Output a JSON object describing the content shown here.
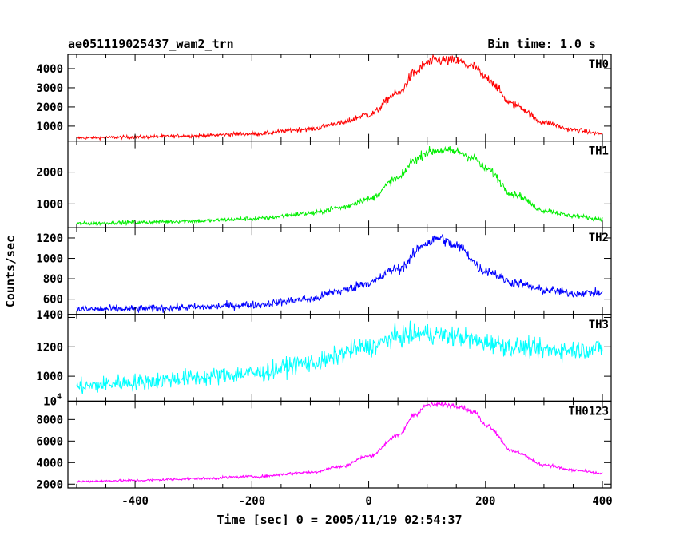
{
  "chart_data": {
    "type": "line",
    "title": "ae051119025437_wam2_trn",
    "bin_time": "Bin time: 1.0 s",
    "xlabel": "Time [sec] 0 = 2005/11/19 02:54:37",
    "ylabel": "Counts/sec",
    "xlim": [
      -515,
      415
    ],
    "xticks": [
      -400,
      -200,
      0,
      200,
      400
    ],
    "grid": false,
    "panels": [
      {
        "name": "TH0",
        "color": "#ff0000",
        "ylim": [
          220,
          4750
        ],
        "yticks": [
          1000,
          2000,
          3000,
          4000
        ],
        "noise": 80,
        "x": [
          -500,
          -400,
          -300,
          -200,
          -100,
          -50,
          0,
          50,
          80,
          100,
          120,
          150,
          180,
          200,
          250,
          300,
          350,
          400
        ],
        "y": [
          380,
          430,
          500,
          600,
          850,
          1150,
          1600,
          2700,
          3800,
          4300,
          4450,
          4400,
          4100,
          3500,
          2100,
          1200,
          800,
          600
        ]
      },
      {
        "name": "TH1",
        "color": "#00ee00",
        "ylim": [
          250,
          2980
        ],
        "yticks": [
          1000,
          2000
        ],
        "noise": 55,
        "x": [
          -500,
          -400,
          -300,
          -200,
          -100,
          -50,
          0,
          50,
          80,
          100,
          120,
          150,
          180,
          200,
          250,
          300,
          350,
          400
        ],
        "y": [
          380,
          420,
          460,
          530,
          700,
          880,
          1150,
          1800,
          2400,
          2630,
          2690,
          2650,
          2450,
          2100,
          1300,
          800,
          620,
          520
        ]
      },
      {
        "name": "TH2",
        "color": "#0000ff",
        "ylim": [
          450,
          1300
        ],
        "yticks": [
          600,
          800,
          1000,
          1200
        ],
        "noise": 35,
        "x": [
          -500,
          -400,
          -300,
          -200,
          -100,
          -50,
          0,
          50,
          100,
          120,
          150,
          200,
          250,
          300,
          350,
          400
        ],
        "y": [
          500,
          505,
          520,
          545,
          600,
          680,
          760,
          900,
          1150,
          1200,
          1120,
          880,
          760,
          690,
          660,
          660
        ]
      },
      {
        "name": "TH3",
        "color": "#00ffff",
        "ylim": [
          830,
          1420
        ],
        "yticks": [
          1000,
          1200,
          1400
        ],
        "noise": 55,
        "x": [
          -500,
          -400,
          -300,
          -200,
          -100,
          0,
          50,
          100,
          150,
          200,
          250,
          300,
          350,
          400
        ],
        "y": [
          930,
          960,
          990,
          1020,
          1090,
          1200,
          1270,
          1290,
          1270,
          1230,
          1200,
          1180,
          1180,
          1190
        ]
      },
      {
        "name": "TH0123",
        "color": "#ff00ff",
        "ylim": [
          1650,
          9700
        ],
        "yticks": [
          2000,
          4000,
          6000,
          8000
        ],
        "ytick_labels": [
          "2000",
          "4000",
          "6000",
          "8000",
          "10"
        ],
        "yexp_label": "4",
        "noise": 110,
        "x": [
          -500,
          -400,
          -300,
          -200,
          -100,
          -50,
          0,
          50,
          80,
          100,
          120,
          150,
          180,
          200,
          250,
          300,
          350,
          400
        ],
        "y": [
          2250,
          2350,
          2500,
          2700,
          3100,
          3600,
          4600,
          6500,
          8500,
          9300,
          9400,
          9300,
          8700,
          7500,
          5000,
          3800,
          3300,
          3000
        ]
      }
    ]
  }
}
